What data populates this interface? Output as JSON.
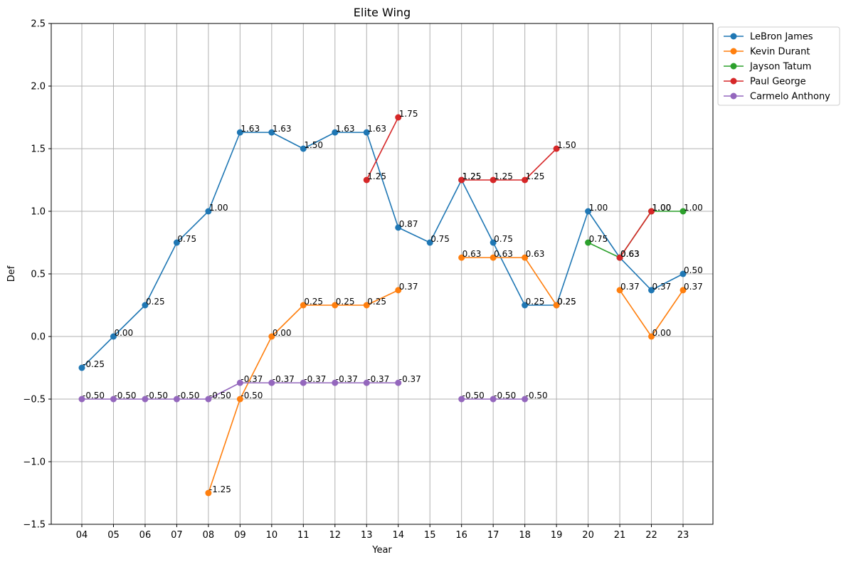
{
  "chart_data": {
    "type": "line",
    "title": "Elite Wing",
    "xlabel": "Year",
    "ylabel": "Def",
    "x": [
      "04",
      "05",
      "06",
      "07",
      "08",
      "09",
      "10",
      "11",
      "12",
      "13",
      "14",
      "15",
      "16",
      "17",
      "18",
      "19",
      "20",
      "21",
      "22",
      "23"
    ],
    "ylim": [
      -1.5,
      2.5
    ],
    "yticks": [
      -1.5,
      -1.0,
      -0.5,
      0.0,
      0.5,
      1.0,
      1.5,
      2.0,
      2.5
    ],
    "ytick_labels": [
      "−1.5",
      "−1.0",
      "−0.5",
      "0.0",
      "0.5",
      "1.0",
      "1.5",
      "2.0",
      "2.5"
    ],
    "grid": true,
    "legend_position": "outside top-right",
    "point_labels_shown": true,
    "series": [
      {
        "name": "LeBron James",
        "color": "#1f77b4",
        "values": [
          -0.25,
          0.0,
          0.25,
          0.75,
          1.0,
          1.63,
          1.63,
          1.5,
          1.63,
          1.63,
          0.87,
          0.75,
          1.25,
          0.75,
          0.25,
          0.25,
          1.0,
          0.63,
          0.37,
          0.5
        ]
      },
      {
        "name": "Kevin Durant",
        "color": "#ff7f0e",
        "values": [
          null,
          null,
          null,
          null,
          -1.25,
          -0.5,
          0.0,
          0.25,
          0.25,
          0.25,
          0.37,
          null,
          0.63,
          0.63,
          0.63,
          0.25,
          null,
          0.37,
          0.0,
          0.37
        ]
      },
      {
        "name": "Jayson Tatum",
        "color": "#2ca02c",
        "values": [
          null,
          null,
          null,
          null,
          null,
          null,
          null,
          null,
          null,
          null,
          null,
          null,
          null,
          null,
          null,
          null,
          0.75,
          0.63,
          1.0,
          1.0
        ]
      },
      {
        "name": "Paul George",
        "color": "#d62728",
        "values": [
          null,
          null,
          null,
          null,
          null,
          null,
          null,
          null,
          null,
          1.25,
          1.75,
          null,
          1.25,
          1.25,
          1.25,
          1.5,
          null,
          0.63,
          1.0,
          null
        ]
      },
      {
        "name": "Carmelo Anthony",
        "color": "#9467bd",
        "values": [
          -0.5,
          -0.5,
          -0.5,
          -0.5,
          -0.5,
          -0.37,
          -0.37,
          -0.37,
          -0.37,
          -0.37,
          -0.37,
          null,
          -0.5,
          -0.5,
          -0.5,
          null,
          null,
          null,
          null,
          null
        ]
      }
    ]
  }
}
